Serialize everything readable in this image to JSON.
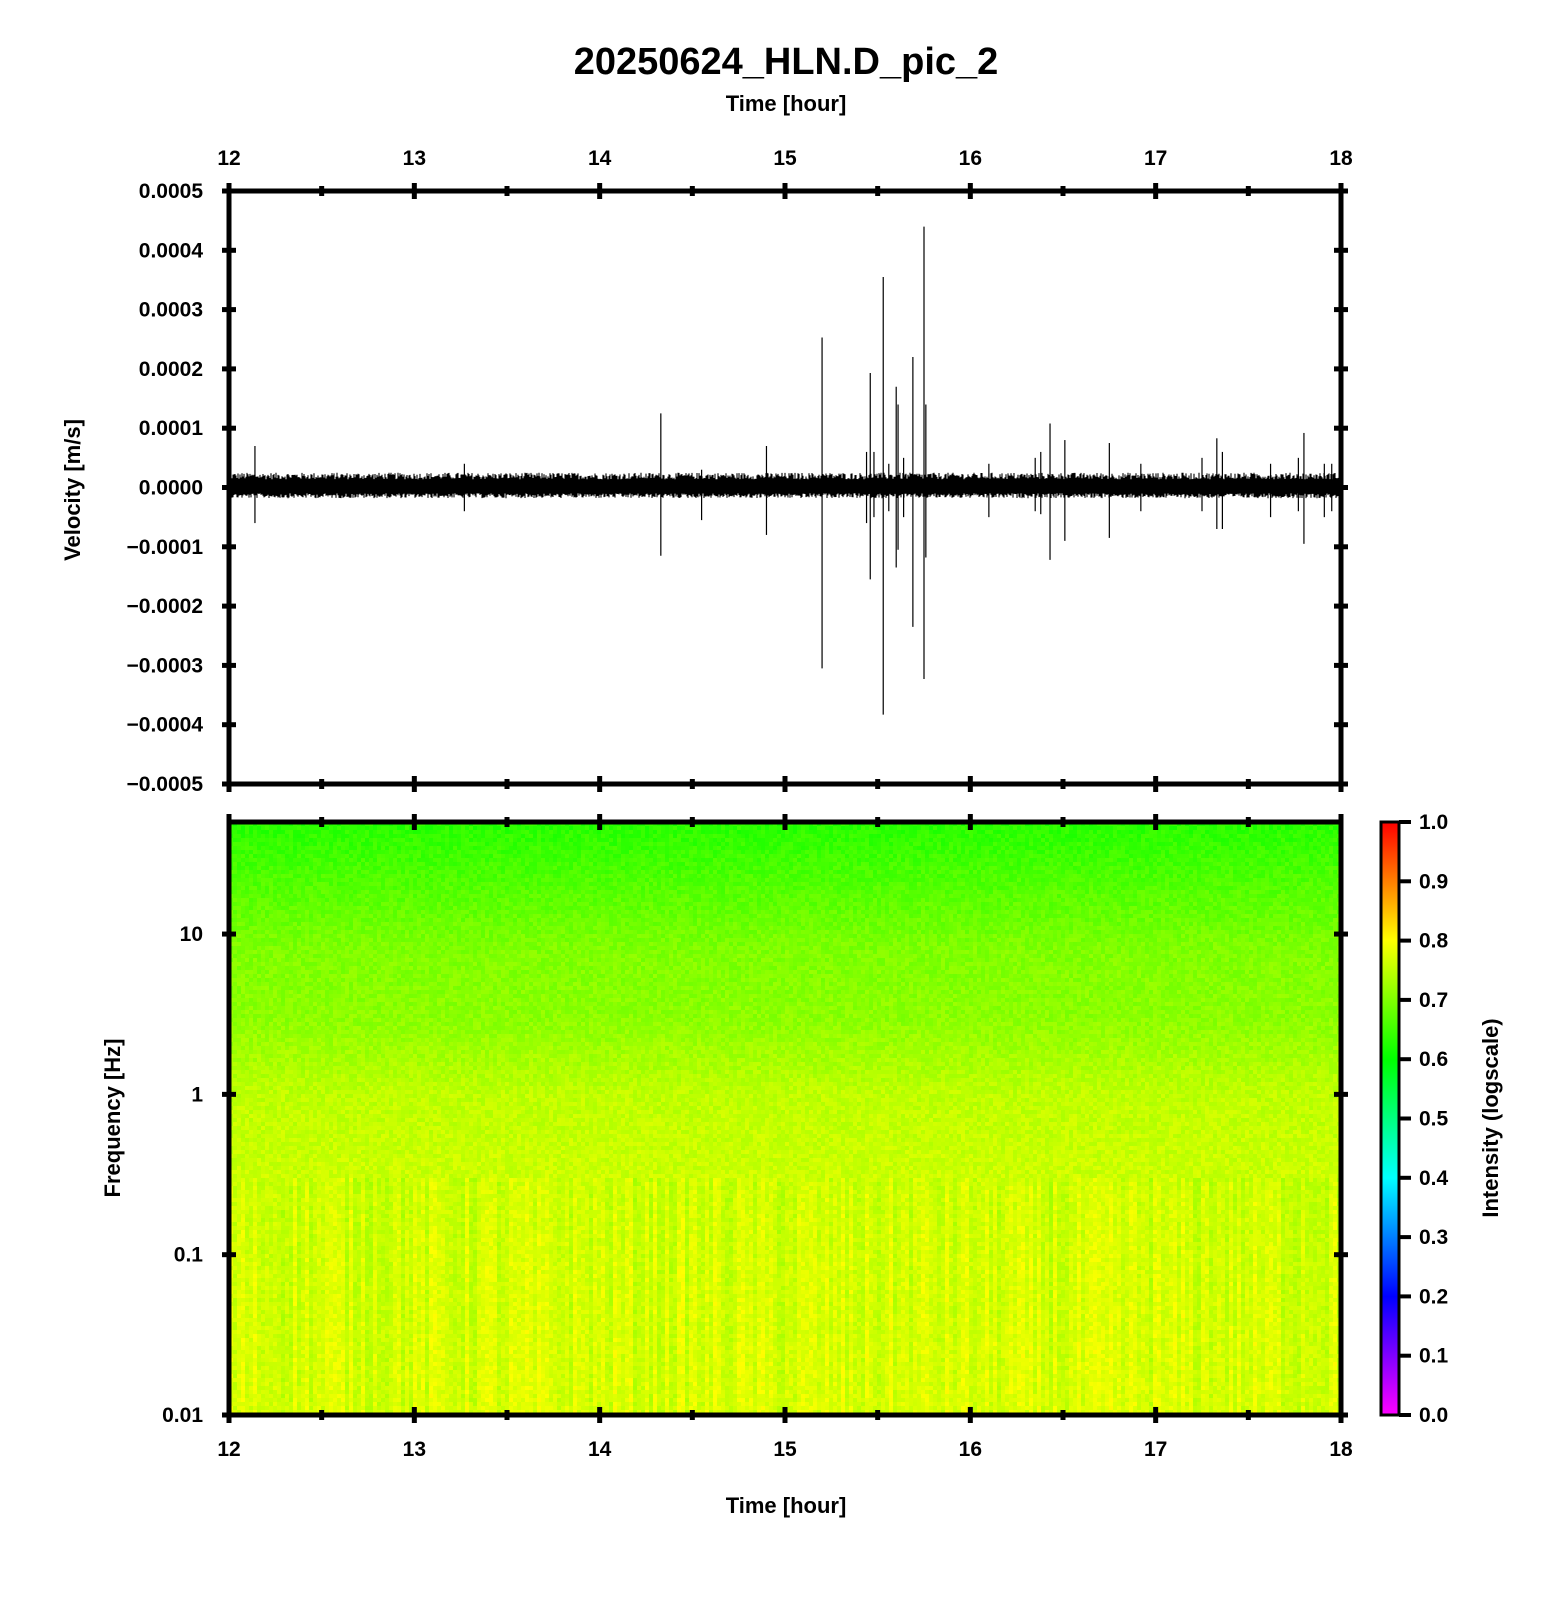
{
  "chart_data": [
    {
      "type": "line",
      "title": "20250624_HLN.D_pic_2",
      "xlabel": "Time [hour]",
      "ylabel": "Velocity [m/s]",
      "xlim": [
        12,
        18
      ],
      "ylim": [
        -0.0005,
        0.0005
      ],
      "x_tick_labels": [
        "12",
        "13",
        "14",
        "15",
        "16",
        "17",
        "18"
      ],
      "y_tick_labels": [
        "0.0005",
        "0.0004",
        "0.0003",
        "0.0002",
        "0.0001",
        "0.0000",
        "−0.0001",
        "−0.0002",
        "−0.0003",
        "−0.0004",
        "−0.0005"
      ],
      "y_tick_values": [
        0.0005,
        0.0004,
        0.0003,
        0.0002,
        0.0001,
        0.0,
        -0.0001,
        -0.0002,
        -0.0003,
        -0.0004,
        -0.0005
      ],
      "noise_band": [
        -1.8e-05,
        2.5e-05
      ],
      "line_color": "#000000",
      "spikes": [
        {
          "x": 12.14,
          "ymax": 7e-05,
          "ymin": -6e-05
        },
        {
          "x": 13.27,
          "ymax": 4e-05,
          "ymin": -4e-05
        },
        {
          "x": 14.33,
          "ymax": 0.000125,
          "ymin": -0.000115
        },
        {
          "x": 14.55,
          "ymax": 3e-05,
          "ymin": -5.5e-05
        },
        {
          "x": 14.9,
          "ymax": 7e-05,
          "ymin": -8e-05
        },
        {
          "x": 15.2,
          "ymax": 0.000253,
          "ymin": -0.000305
        },
        {
          "x": 15.44,
          "ymax": 6e-05,
          "ymin": -6e-05
        },
        {
          "x": 15.46,
          "ymax": 0.000193,
          "ymin": -0.000155
        },
        {
          "x": 15.48,
          "ymax": 6e-05,
          "ymin": -5e-05
        },
        {
          "x": 15.53,
          "ymax": 0.000355,
          "ymin": -0.000383
        },
        {
          "x": 15.56,
          "ymax": 4e-05,
          "ymin": -4e-05
        },
        {
          "x": 15.6,
          "ymax": 0.00017,
          "ymin": -0.000135
        },
        {
          "x": 15.61,
          "ymax": 0.00014,
          "ymin": -0.000105
        },
        {
          "x": 15.64,
          "ymax": 5e-05,
          "ymin": -5e-05
        },
        {
          "x": 15.69,
          "ymax": 0.00022,
          "ymin": -0.000235
        },
        {
          "x": 15.75,
          "ymax": 0.00044,
          "ymin": -0.000323
        },
        {
          "x": 15.76,
          "ymax": 0.00014,
          "ymin": -0.000118
        },
        {
          "x": 16.1,
          "ymax": 4e-05,
          "ymin": -5e-05
        },
        {
          "x": 16.35,
          "ymax": 5e-05,
          "ymin": -4e-05
        },
        {
          "x": 16.38,
          "ymax": 6e-05,
          "ymin": -4.5e-05
        },
        {
          "x": 16.43,
          "ymax": 0.000108,
          "ymin": -0.000122
        },
        {
          "x": 16.51,
          "ymax": 8e-05,
          "ymin": -9e-05
        },
        {
          "x": 16.75,
          "ymax": 7.5e-05,
          "ymin": -8.5e-05
        },
        {
          "x": 16.92,
          "ymax": 4e-05,
          "ymin": -4e-05
        },
        {
          "x": 17.25,
          "ymax": 5e-05,
          "ymin": -4e-05
        },
        {
          "x": 17.33,
          "ymax": 8.3e-05,
          "ymin": -7e-05
        },
        {
          "x": 17.36,
          "ymax": 6e-05,
          "ymin": -7e-05
        },
        {
          "x": 17.62,
          "ymax": 4e-05,
          "ymin": -5e-05
        },
        {
          "x": 17.77,
          "ymax": 5e-05,
          "ymin": -4e-05
        },
        {
          "x": 17.8,
          "ymax": 9.2e-05,
          "ymin": -9.5e-05
        },
        {
          "x": 17.91,
          "ymax": 4e-05,
          "ymin": -5e-05
        },
        {
          "x": 17.95,
          "ymax": 4e-05,
          "ymin": -4e-05
        }
      ]
    },
    {
      "type": "heatmap",
      "xlabel": "Time [hour]",
      "ylabel": "Frequency [Hz]",
      "xlim": [
        12,
        18
      ],
      "ylim": [
        0.01,
        50
      ],
      "y_scale": "log",
      "x_tick_labels": [
        "12",
        "13",
        "14",
        "15",
        "16",
        "17",
        "18"
      ],
      "y_tick_labels": [
        "10",
        "1",
        "0.1",
        "0.01"
      ],
      "y_tick_values": [
        10,
        1,
        0.1,
        0.01
      ],
      "intensity_by_frequency": [
        {
          "hz": 50,
          "intensity": 0.63
        },
        {
          "hz": 20,
          "intensity": 0.665
        },
        {
          "hz": 8,
          "intensity": 0.7
        },
        {
          "hz": 3,
          "intensity": 0.71
        },
        {
          "hz": 1.5,
          "intensity": 0.735
        },
        {
          "hz": 1,
          "intensity": 0.75
        },
        {
          "hz": 0.3,
          "intensity": 0.76
        },
        {
          "hz": 0.1,
          "intensity": 0.765
        },
        {
          "hz": 0.01,
          "intensity": 0.77
        }
      ],
      "colorbar": {
        "label": "Intensity (logscale)",
        "range": [
          0.0,
          1.0
        ],
        "tick_labels": [
          "1.0",
          "0.9",
          "0.8",
          "0.7",
          "0.6",
          "0.5",
          "0.4",
          "0.3",
          "0.2",
          "0.1",
          "0.0"
        ],
        "tick_values": [
          1.0,
          0.9,
          0.8,
          0.7,
          0.6,
          0.5,
          0.4,
          0.3,
          0.2,
          0.1,
          0.0
        ],
        "colors": [
          "#ff00ff",
          "#0000ff",
          "#00ffff",
          "#00ff00",
          "#ffff00",
          "#ff0000"
        ]
      }
    }
  ]
}
